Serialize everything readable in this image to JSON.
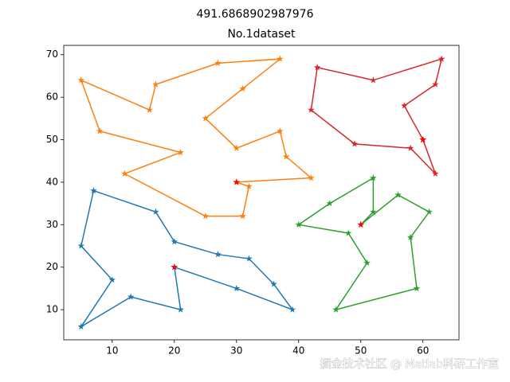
{
  "chart_data": {
    "type": "route",
    "suptitle": "491.6868902987976",
    "title": "No.1dataset",
    "watermark": "掘金技术社区 @ Matlab科研工作室",
    "xlim": [
      2.2,
      65.8
    ],
    "ylim": [
      2.9,
      72.2
    ],
    "xticks": [
      10,
      20,
      30,
      40,
      50,
      60
    ],
    "yticks": [
      10,
      20,
      30,
      40,
      50,
      60,
      70
    ],
    "series": [
      {
        "color": "#1f77b4",
        "x": [
          20,
          30,
          39,
          36,
          32,
          27,
          20,
          17,
          7,
          5,
          10,
          5,
          13,
          21,
          20
        ],
        "y": [
          20,
          15,
          10,
          16,
          22,
          23,
          26,
          33,
          38,
          25,
          17,
          6,
          13,
          10,
          20
        ]
      },
      {
        "color": "#ff7f0e",
        "x": [
          30,
          32,
          31,
          25,
          12,
          21,
          8,
          5,
          16,
          17,
          27,
          37,
          31,
          25,
          30,
          37,
          38,
          42,
          30
        ],
        "y": [
          40,
          39,
          32,
          32,
          42,
          47,
          52,
          64,
          57,
          63,
          68,
          69,
          62,
          55,
          48,
          52,
          46,
          41,
          40
        ]
      },
      {
        "color": "#2ca02c",
        "x": [
          50,
          56,
          61,
          58,
          59,
          46,
          51,
          48,
          40,
          45,
          52,
          52,
          50
        ],
        "y": [
          30,
          37,
          33,
          27,
          15,
          10,
          21,
          28,
          30,
          35,
          41,
          33,
          30
        ]
      },
      {
        "color": "#d62728",
        "x": [
          60,
          62,
          58,
          49,
          42,
          43,
          52,
          63,
          62,
          57,
          60
        ],
        "y": [
          50,
          42,
          48,
          49,
          57,
          67,
          64,
          69,
          63,
          58,
          50
        ]
      }
    ],
    "depots": {
      "color": "#ff0000",
      "x": [
        20,
        30,
        50,
        60
      ],
      "y": [
        20,
        40,
        30,
        50
      ]
    }
  }
}
